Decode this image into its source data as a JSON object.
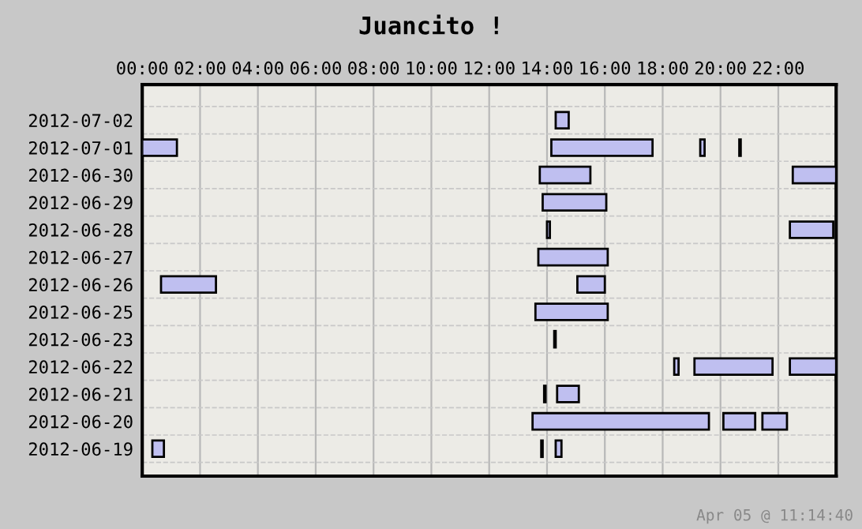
{
  "chart_data": {
    "type": "bar",
    "orientation": "horizontal",
    "title": "Juancito !",
    "categories": [
      "2012-07-02",
      "2012-07-01",
      "2012-06-30",
      "2012-06-29",
      "2012-06-28",
      "2012-06-27",
      "2012-06-26",
      "2012-06-25",
      "2012-06-23",
      "2012-06-22",
      "2012-06-21",
      "2012-06-20",
      "2012-06-19"
    ],
    "series": [
      {
        "color": "#bfbff0",
        "base": [
          14.3,
          0,
          13.75,
          13.85,
          14,
          13.7,
          0.65,
          13.6,
          14.25,
          18.4,
          13.9,
          13.5,
          0.35
        ],
        "values": [
          0.45,
          1.2,
          1.75,
          2.2,
          0.1,
          2.4,
          1.9,
          2.5,
          0.05,
          0.15,
          0.05,
          6.1,
          0.4
        ]
      },
      {
        "color": "#bfbff0",
        "base": [
          null,
          14.15,
          22.5,
          null,
          22.4,
          null,
          15.05,
          null,
          null,
          19.1,
          14.35,
          20.1,
          13.8
        ],
        "values": [
          null,
          3.5,
          1.5,
          null,
          1.5,
          null,
          0.95,
          null,
          null,
          2.7,
          0.75,
          1.1,
          0.05
        ]
      },
      {
        "color": "#bfbff0",
        "base": [
          null,
          19.3,
          null,
          null,
          null,
          null,
          null,
          null,
          null,
          22.4,
          null,
          21.45,
          14.3
        ],
        "values": [
          null,
          0.15,
          null,
          null,
          null,
          null,
          null,
          null,
          null,
          1.6,
          null,
          0.85,
          0.2
        ]
      },
      {
        "color": "#bfbff0",
        "base": [
          null,
          20.65,
          null,
          null,
          null,
          null,
          null,
          null,
          null,
          null,
          null,
          null,
          null
        ],
        "values": [
          null,
          0.05,
          null,
          null,
          null,
          null,
          null,
          null,
          null,
          null,
          null,
          null,
          null
        ]
      }
    ],
    "xlim": [
      0,
      24
    ],
    "xticks": [
      {
        "value": 0,
        "label": "00:00"
      },
      {
        "value": 2,
        "label": "02:00"
      },
      {
        "value": 4,
        "label": "04:00"
      },
      {
        "value": 6,
        "label": "06:00"
      },
      {
        "value": 8,
        "label": "08:00"
      },
      {
        "value": 10,
        "label": "10:00"
      },
      {
        "value": 12,
        "label": "12:00"
      },
      {
        "value": 14,
        "label": "14:00"
      },
      {
        "value": 16,
        "label": "16:00"
      },
      {
        "value": 18,
        "label": "18:00"
      },
      {
        "value": 20,
        "label": "20:00"
      },
      {
        "value": 22,
        "label": "22:00"
      }
    ],
    "grid": "x",
    "annotations": [
      "Apr 05 @ 11:14:40"
    ]
  }
}
